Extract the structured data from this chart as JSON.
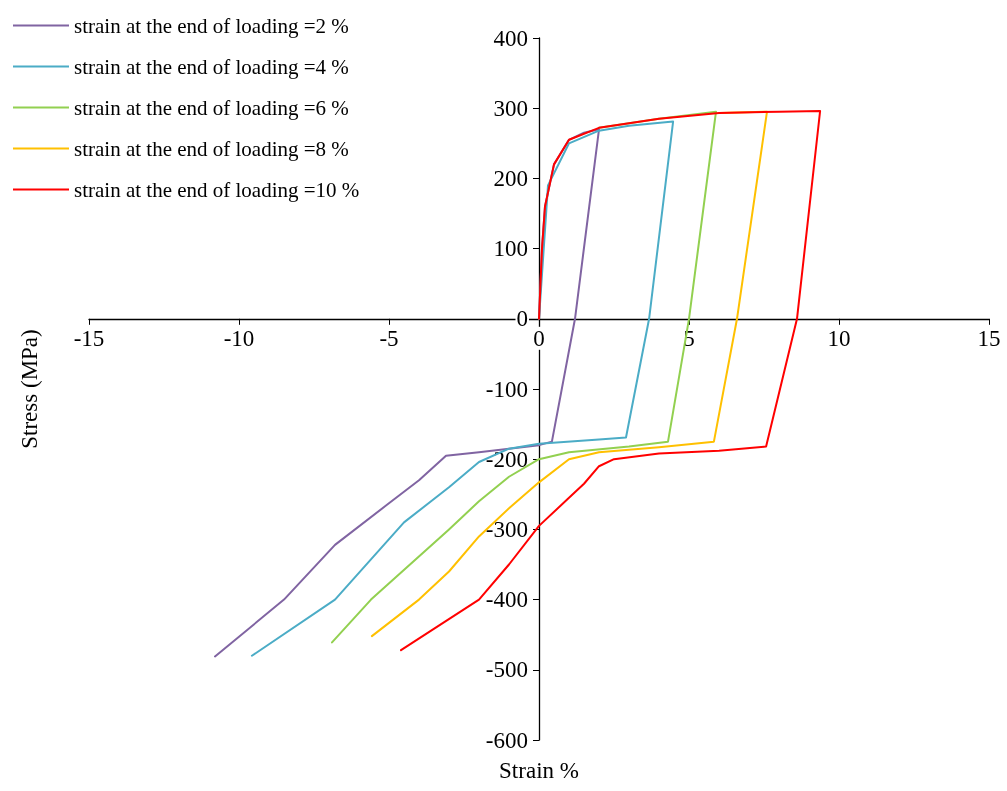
{
  "chart_data": {
    "type": "line",
    "xlabel": "Strain %",
    "ylabel": "Stress (MPa)",
    "xlim": [
      -15,
      15
    ],
    "xticks": [
      -15,
      -10,
      -5,
      0,
      5,
      10,
      15
    ],
    "ylim": [
      -600,
      400
    ],
    "yticks": [
      -600,
      -500,
      -400,
      -300,
      -200,
      -100,
      0,
      100,
      200,
      300,
      400
    ],
    "grid": false,
    "legend": "top left",
    "marker": "none",
    "line_style": "solid",
    "series": [
      {
        "name": "strain at the end of loading =2 %",
        "color": "#8064a2",
        "x": [
          0,
          0.1,
          0.2,
          0.5,
          1,
          1.5,
          2,
          1.2,
          0.43,
          0,
          -1,
          -2,
          -3.1,
          -4,
          -5.1,
          -6.8,
          -8.5,
          -10.8
        ],
        "values": [
          0,
          100,
          160,
          220,
          255,
          265,
          270,
          0,
          -175,
          -180,
          -185,
          -190,
          -195,
          -230,
          -266,
          -322,
          -400,
          -481
        ]
      },
      {
        "name": "strain at the end of loading =4 %",
        "color": "#4bacc6",
        "x": [
          0,
          0.3,
          1,
          2,
          3,
          4.47,
          3.67,
          2.9,
          2,
          0,
          -1,
          -2,
          -3,
          -4.5,
          -6.8,
          -9.57
        ],
        "values": [
          0,
          190,
          250,
          268,
          275,
          281,
          0,
          -169,
          -172,
          -178,
          -185,
          -204,
          -240,
          -290,
          -400,
          -480
        ]
      },
      {
        "name": "strain at the end of loading =6 %",
        "color": "#92d050",
        "x": [
          2,
          4,
          5.9,
          5,
          4.3,
          3,
          1,
          0,
          -1,
          -2,
          -3,
          -5.6,
          -6.9
        ],
        "values": [
          272,
          285,
          295,
          0,
          -175,
          -182,
          -190,
          -200,
          -225,
          -260,
          -300,
          -400,
          -461
        ]
      },
      {
        "name": "strain at the end of loading =8 %",
        "color": "#ffc000",
        "x": [
          6,
          7.6,
          6.6,
          5.83,
          4,
          2,
          1,
          0,
          -1,
          -2,
          -3,
          -4,
          -5.57
        ],
        "values": [
          293,
          295,
          0,
          -175,
          -183,
          -190,
          -200,
          -233,
          -270,
          -310,
          -360,
          -400,
          -452
        ]
      },
      {
        "name": "strain at the end of loading =10 %",
        "color": "#ff0000",
        "x": [
          0,
          0.1,
          0.2,
          0.5,
          1,
          2,
          4,
          6,
          8,
          9.37,
          8.6,
          7.57,
          6,
          4,
          2.5,
          2,
          1.5,
          1,
          0,
          -1,
          -2,
          -4.6
        ],
        "values": [
          0,
          100,
          160,
          220,
          255,
          272,
          285,
          293,
          295,
          296,
          0,
          -182,
          -188,
          -192,
          -200,
          -210,
          -235,
          -255,
          -295,
          -350,
          -400,
          -472
        ]
      }
    ]
  }
}
